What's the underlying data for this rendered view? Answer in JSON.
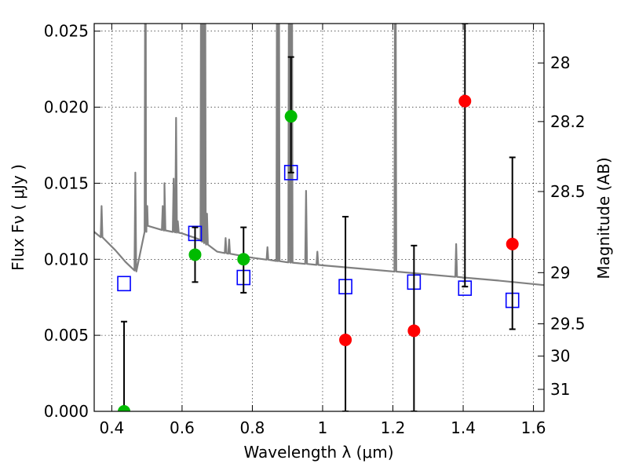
{
  "chart_data": {
    "type": "scatter",
    "xlabel": "Wavelength  λ (μm)",
    "ylabel": "Flux  Fν  ( μJy )",
    "y2label": "Magnitude (AB)",
    "xlim": [
      0.35,
      1.63
    ],
    "ylim": [
      0.0,
      0.0255
    ],
    "x_ticks": [
      "0.4",
      "0.6",
      "0.8",
      "1",
      "1.2",
      "1.4",
      "1.6"
    ],
    "y_ticks": [
      "0.000",
      "0.005",
      "0.010",
      "0.015",
      "0.020",
      "0.025"
    ],
    "y2_ticks": [
      "28",
      "28.2",
      "28.5",
      "29",
      "29.5",
      "30",
      "31"
    ],
    "grid": true,
    "colors": {
      "model": "#808080",
      "model_phot": "#0000ff",
      "detected": "#00bb00",
      "nondetected": "#ff0000",
      "errorbar": "#000000"
    },
    "series": [
      {
        "kind": "model_spectrum",
        "points": [
          [
            0.35,
            0.0118
          ],
          [
            0.38,
            0.0113
          ],
          [
            0.41,
            0.0106
          ],
          [
            0.44,
            0.0098
          ],
          [
            0.47,
            0.0092
          ],
          [
            0.5,
            0.0122
          ],
          [
            0.55,
            0.0119
          ],
          [
            0.6,
            0.0117
          ],
          [
            0.65,
            0.0113
          ],
          [
            0.7,
            0.0105
          ],
          [
            0.8,
            0.0101
          ],
          [
            0.9,
            0.0098
          ],
          [
            1.0,
            0.0096
          ],
          [
            1.1,
            0.0094
          ],
          [
            1.2,
            0.0092
          ],
          [
            1.3,
            0.009
          ],
          [
            1.4,
            0.0088
          ],
          [
            1.5,
            0.0086
          ],
          [
            1.63,
            0.0083
          ]
        ],
        "lines": [
          [
            0.371,
            0.0135
          ],
          [
            0.467,
            0.0157
          ],
          [
            0.496,
            0.04
          ],
          [
            0.501,
            0.0135
          ],
          [
            0.5,
            0.0135
          ],
          [
            0.545,
            0.0135
          ],
          [
            0.55,
            0.015
          ],
          [
            0.576,
            0.0153
          ],
          [
            0.583,
            0.0193
          ],
          [
            0.588,
            0.0125
          ],
          [
            0.655,
            0.04
          ],
          [
            0.659,
            0.04
          ],
          [
            0.665,
            0.04
          ],
          [
            0.671,
            0.013
          ],
          [
            0.724,
            0.0114
          ],
          [
            0.734,
            0.0113
          ],
          [
            0.843,
            0.0108
          ],
          [
            0.871,
            0.04
          ],
          [
            0.875,
            0.04
          ],
          [
            0.905,
            0.04
          ],
          [
            0.912,
            0.04
          ],
          [
            0.953,
            0.0145
          ],
          [
            0.985,
            0.0105
          ],
          [
            1.207,
            0.04
          ],
          [
            1.38,
            0.011
          ]
        ]
      },
      {
        "kind": "model_photometry",
        "points": [
          [
            0.435,
            0.0084
          ],
          [
            0.637,
            0.0117
          ],
          [
            0.775,
            0.0088
          ],
          [
            0.91,
            0.0157
          ],
          [
            1.065,
            0.0082
          ],
          [
            1.26,
            0.0085
          ],
          [
            1.405,
            0.0081
          ],
          [
            1.54,
            0.0073
          ]
        ]
      },
      {
        "kind": "detected",
        "points": [
          [
            0.435,
            0.0
          ],
          [
            0.637,
            0.0103
          ],
          [
            0.775,
            0.01
          ],
          [
            0.91,
            0.0194
          ]
        ],
        "err": [
          [
            0.0,
            0.0059
          ],
          [
            0.0085,
            0.0121
          ],
          [
            0.0078,
            0.0121
          ],
          [
            0.0157,
            0.0233
          ]
        ]
      },
      {
        "kind": "nondetected",
        "points": [
          [
            1.065,
            0.0047
          ],
          [
            1.26,
            0.0053
          ],
          [
            1.405,
            0.0204
          ],
          [
            1.54,
            0.011
          ]
        ],
        "err": [
          [
            0.0,
            0.0128
          ],
          [
            0.0,
            0.0109
          ],
          [
            0.0082,
            0.0255
          ],
          [
            0.0054,
            0.0167
          ]
        ]
      }
    ]
  }
}
